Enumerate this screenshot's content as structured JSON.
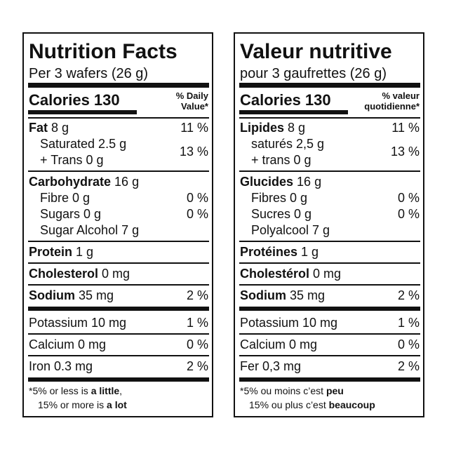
{
  "panels": [
    {
      "title": "Nutrition Facts",
      "serving": "Per 3 wafers (26 g)",
      "calories": "Calories 130",
      "dv_header": [
        "% Daily",
        "Value*"
      ],
      "rows": [
        {
          "bold": "Fat",
          "text": "8 g",
          "dv": "11 %"
        },
        {
          "lines": [
            "Saturated 2.5 g",
            "+ Trans 0 g"
          ],
          "dv": "13 %"
        },
        {
          "bold": "Carbohydrate",
          "text": "16 g"
        },
        {
          "text": "Fibre 0 g",
          "dv": "0 %"
        },
        {
          "text": "Sugars 0 g",
          "dv": "0 %"
        },
        {
          "text": "Sugar Alcohol 7 g"
        },
        {
          "bold": "Protein",
          "text": "1 g"
        },
        {
          "bold": "Cholesterol",
          "text": "0 mg"
        },
        {
          "bold": "Sodium",
          "text": "35 mg",
          "dv": "2 %"
        },
        {
          "text": "Potassium 10 mg",
          "dv": "1 %"
        },
        {
          "text": "Calcium 0 mg",
          "dv": "0 %"
        },
        {
          "text": "Iron 0.3 mg",
          "dv": "2 %"
        }
      ],
      "footnote": [
        [
          {
            "text": "*5% or less is"
          },
          {
            "text": "a little",
            "bold": true
          },
          {
            "text": ","
          }
        ],
        [
          {
            "text": "15% or more is"
          },
          {
            "text": "a lot",
            "bold": true
          }
        ]
      ]
    },
    {
      "title": "Valeur nutritive",
      "serving": "pour 3 gaufrettes (26 g)",
      "calories": "Calories 130",
      "dv_header": [
        "% valeur",
        "quotidienne*"
      ],
      "rows": [
        {
          "bold": "Lipides",
          "text": "8 g",
          "dv": "11 %"
        },
        {
          "lines": [
            "saturés 2,5 g",
            "+ trans 0 g"
          ],
          "dv": "13 %"
        },
        {
          "bold": "Glucides",
          "text": "16 g"
        },
        {
          "text": "Fibres 0 g",
          "dv": "0 %"
        },
        {
          "text": "Sucres 0 g",
          "dv": "0 %"
        },
        {
          "text": "Polyalcool 7 g"
        },
        {
          "bold": "Protéines",
          "text": "1 g"
        },
        {
          "bold": "Cholestérol",
          "text": "0 mg"
        },
        {
          "bold": "Sodium",
          "text": "35 mg",
          "dv": "2 %"
        },
        {
          "text": "Potassium 10 mg",
          "dv": "1 %"
        },
        {
          "text": "Calcium 0 mg",
          "dv": "0 %"
        },
        {
          "text": "Fer 0,3 mg",
          "dv": "2 %"
        }
      ],
      "footnote": [
        [
          {
            "text": "*5% ou moins c’est"
          },
          {
            "text": "peu",
            "bold": true
          }
        ],
        [
          {
            "text": "15% ou plus c’est"
          },
          {
            "text": "beaucoup",
            "bold": true
          }
        ]
      ]
    }
  ]
}
